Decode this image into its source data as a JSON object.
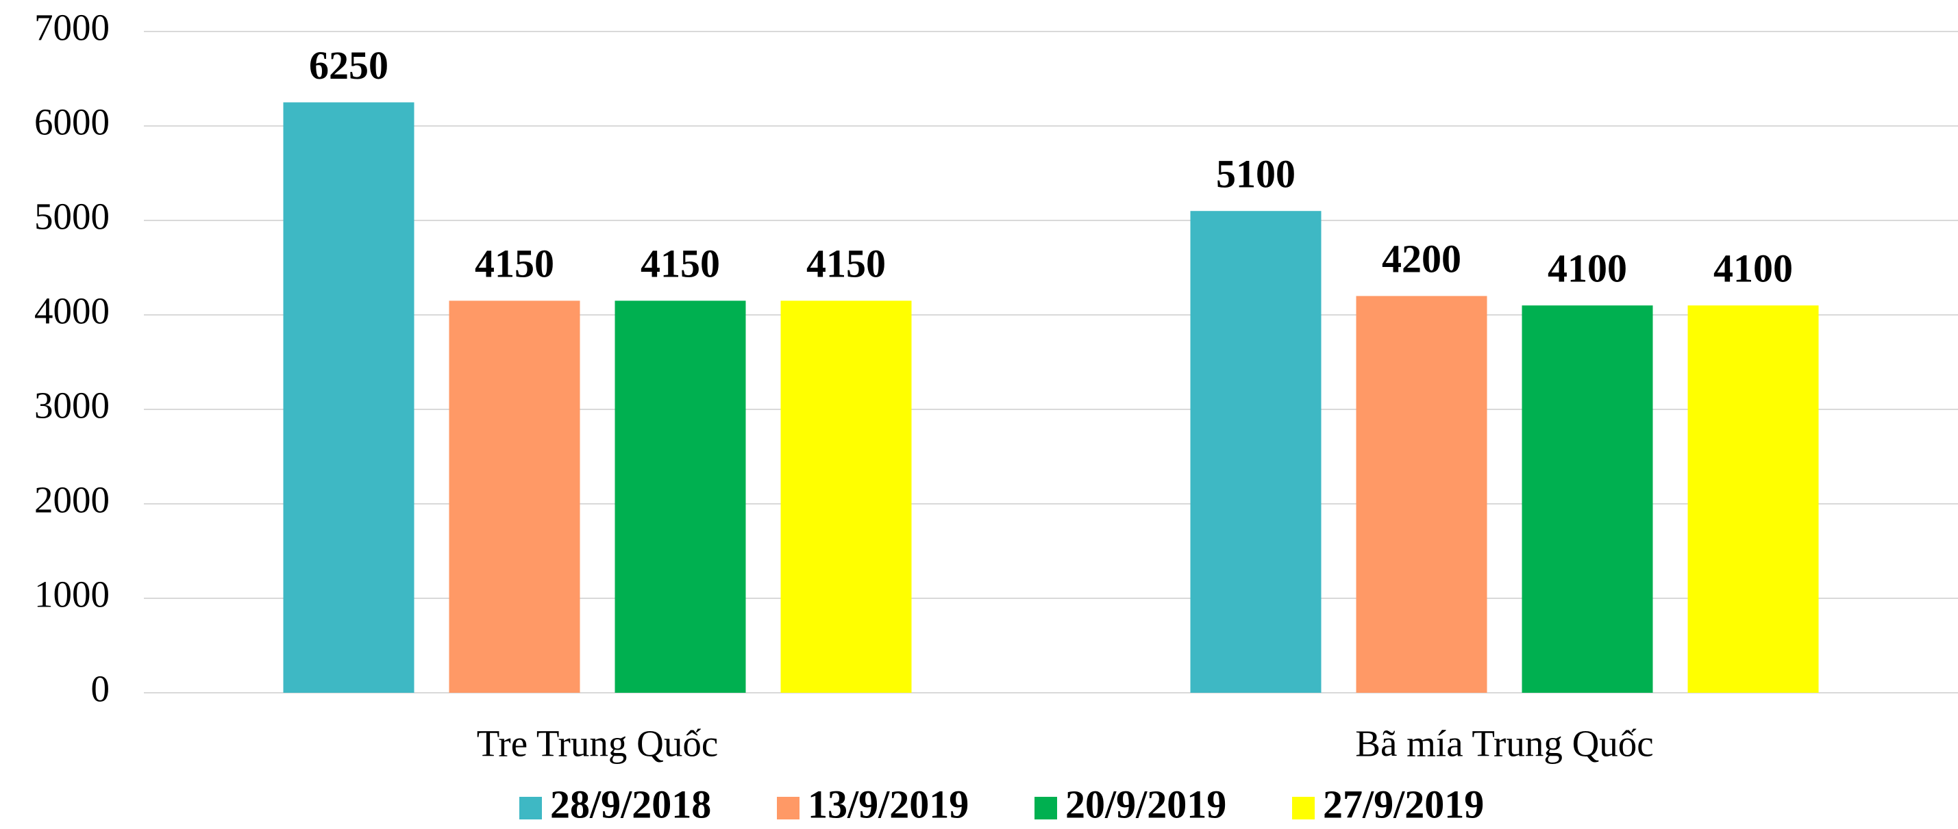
{
  "chart_data": {
    "type": "bar",
    "categories": [
      "Tre Trung Quốc",
      "Bã mía Trung Quốc"
    ],
    "series": [
      {
        "name": "28/9/2018",
        "color": "#3eb8c4",
        "values": [
          6250,
          5100
        ]
      },
      {
        "name": "13/9/2019",
        "color": "#ff9966",
        "values": [
          4150,
          4200
        ]
      },
      {
        "name": "20/9/2019",
        "color": "#00b050",
        "values": [
          4150,
          4100
        ]
      },
      {
        "name": "27/9/2019",
        "color": "#ffff00",
        "values": [
          4150,
          4100
        ]
      }
    ],
    "ylim": [
      0,
      7000
    ],
    "yticks": [
      0,
      1000,
      2000,
      3000,
      4000,
      5000,
      6000,
      7000
    ],
    "grid": true,
    "legend": "bottom"
  }
}
